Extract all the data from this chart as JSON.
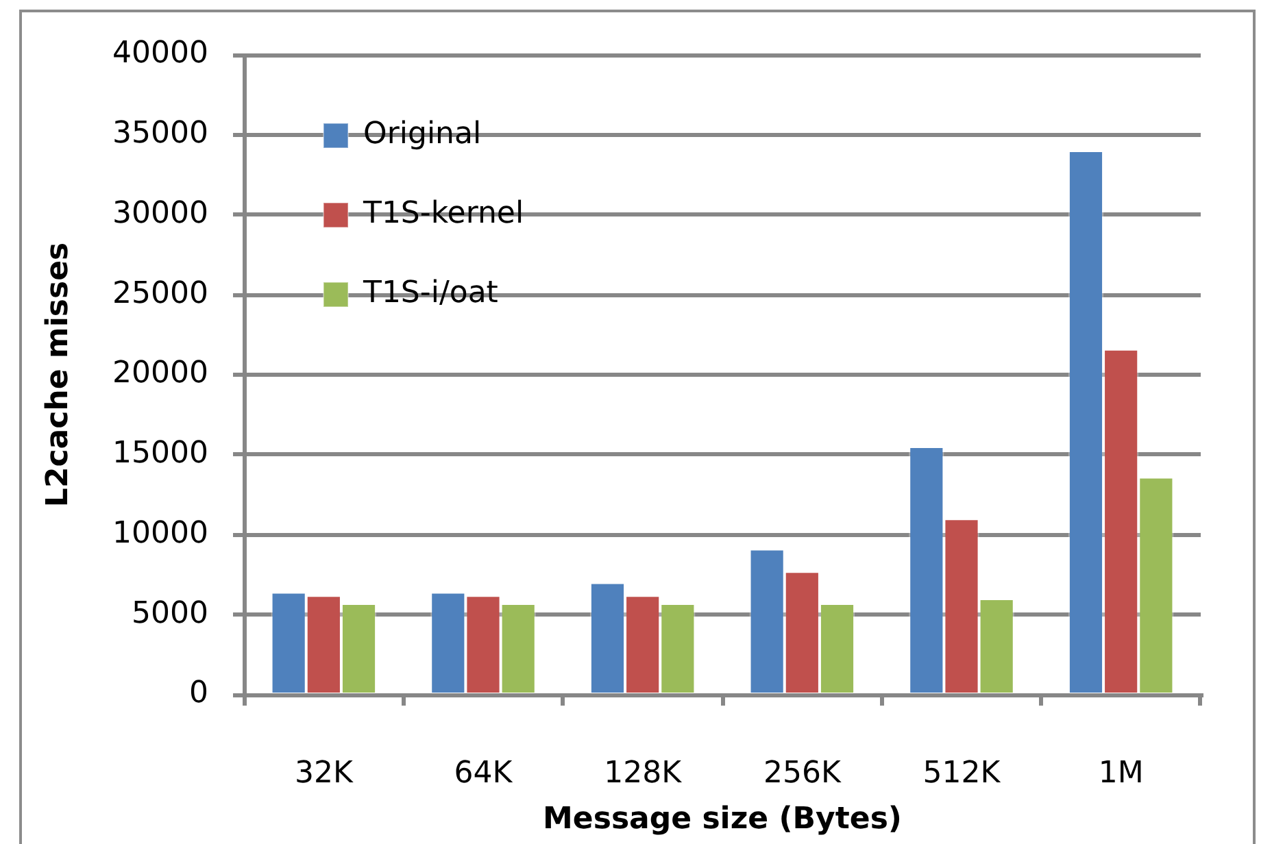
{
  "chart_data": {
    "type": "bar",
    "xlabel": "Message size (Bytes)",
    "ylabel": "L2cache misses",
    "categories": [
      "32K",
      "64K",
      "128K",
      "256K",
      "512K",
      "1M"
    ],
    "series": [
      {
        "name": "Original",
        "color": "#4f81bd",
        "values": [
          6400,
          6400,
          7000,
          9100,
          15500,
          34000
        ]
      },
      {
        "name": "T1S-kernel",
        "color": "#c0504d",
        "values": [
          6200,
          6200,
          6200,
          7700,
          11000,
          21600
        ]
      },
      {
        "name": "T1S-i/oat",
        "color": "#9bbb59",
        "values": [
          5700,
          5700,
          5700,
          5700,
          6000,
          13600
        ]
      }
    ],
    "ylim": [
      0,
      40000
    ],
    "yticks": [
      0,
      5000,
      10000,
      15000,
      20000,
      25000,
      30000,
      35000,
      40000
    ],
    "grid": "y",
    "legend": "top left"
  }
}
